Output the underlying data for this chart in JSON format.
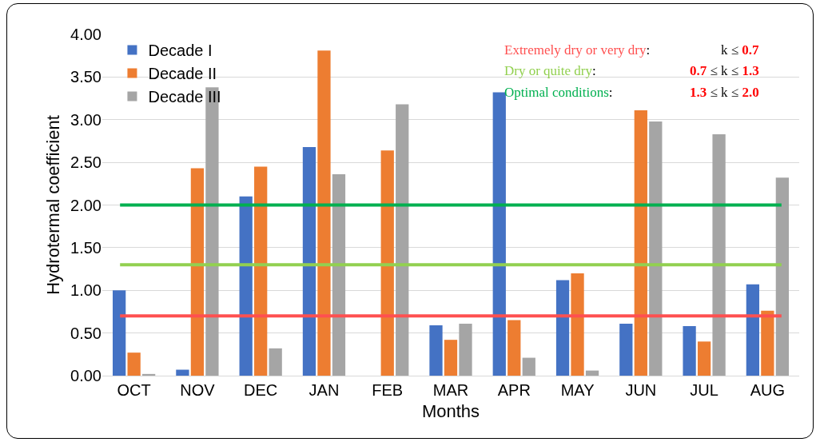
{
  "chart_data": {
    "type": "bar",
    "xlabel": "Months",
    "ylabel": "Hydrotermal coefficient",
    "categories": [
      "OCT",
      "NOV",
      "DEC",
      "JAN",
      "FEB",
      "MAR",
      "APR",
      "MAY",
      "JUN",
      "JUL",
      "AUG"
    ],
    "series": [
      {
        "name": "Decade I",
        "color": "#4472c4",
        "values": [
          1.0,
          0.07,
          2.1,
          2.68,
          null,
          0.59,
          3.32,
          1.12,
          0.61,
          0.58,
          1.07
        ]
      },
      {
        "name": "Decade II",
        "color": "#ed7d31",
        "values": [
          0.27,
          2.43,
          2.45,
          3.81,
          2.64,
          0.42,
          0.65,
          1.2,
          3.11,
          0.4,
          0.76
        ]
      },
      {
        "name": "Decade III",
        "color": "#a5a5a5",
        "values": [
          0.02,
          3.38,
          0.32,
          2.36,
          3.18,
          0.61,
          0.21,
          0.06,
          2.98,
          2.83,
          2.32
        ]
      }
    ],
    "ylim": [
      0,
      4
    ],
    "yticks": [
      {
        "value": 0,
        "label": "0.00"
      },
      {
        "value": 0.5,
        "label": "0.50"
      },
      {
        "value": 1,
        "label": "1.00"
      },
      {
        "value": 1.5,
        "label": "1.50"
      },
      {
        "value": 2,
        "label": "2.00"
      },
      {
        "value": 2.5,
        "label": "2.50"
      },
      {
        "value": 3,
        "label": "3.00"
      },
      {
        "value": 3.5,
        "label": "3.50"
      },
      {
        "value": 4,
        "label": "4.00"
      }
    ],
    "grid": "y",
    "legend": "top left",
    "ref_lines": [
      {
        "axis": "y",
        "value": 0.7,
        "label": "Extremely dry or very dry:",
        "color": "#ff5050"
      },
      {
        "axis": "y",
        "value": 1.3,
        "label": "Dry or quite dry:",
        "color": "#92d050"
      },
      {
        "axis": "y",
        "value": 2.0,
        "label": "Optimal conditions:",
        "color": "#00b050"
      }
    ],
    "annotations": [
      "k ≤ 0.7",
      "0.7 ≤ k ≤ 1.3",
      "1.3 ≤ k ≤ 2.0"
    ]
  }
}
